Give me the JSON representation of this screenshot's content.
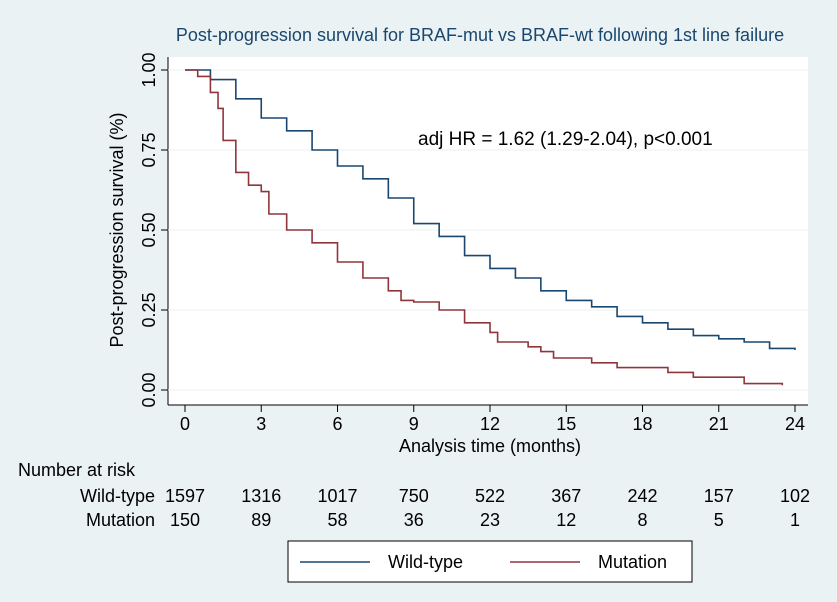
{
  "chart_data": {
    "type": "line",
    "step": true,
    "title": "Post-progression survival for BRAF-mut vs BRAF-wt following 1st line failure",
    "annotation": "adj HR = 1.62 (1.29-2.04), p<0.001",
    "x_label": "Analysis time (months)",
    "y_label": "Post-progression survival (%)",
    "xlim": [
      0,
      24
    ],
    "xticks": [
      0,
      3,
      6,
      9,
      12,
      15,
      18,
      21,
      24
    ],
    "ylim": [
      0,
      1
    ],
    "yticks": [
      {
        "value": 0,
        "label": "0.00"
      },
      {
        "value": 0.25,
        "label": "0.25"
      },
      {
        "value": 0.5,
        "label": "0.50"
      },
      {
        "value": 0.75,
        "label": "0.75"
      },
      {
        "value": 1,
        "label": "1.00"
      }
    ],
    "grid": true,
    "legend": "bottom",
    "series": [
      {
        "name": "Wild-type",
        "color": "#1a476f",
        "x": [
          0,
          1,
          2,
          3,
          4,
          5,
          6,
          7,
          8,
          9,
          10,
          11,
          12,
          13,
          14,
          15,
          16,
          17,
          18,
          19,
          20,
          21,
          22,
          23,
          24
        ],
        "values": [
          1.0,
          0.97,
          0.91,
          0.85,
          0.81,
          0.75,
          0.7,
          0.66,
          0.6,
          0.52,
          0.48,
          0.42,
          0.38,
          0.35,
          0.31,
          0.28,
          0.26,
          0.23,
          0.21,
          0.19,
          0.17,
          0.16,
          0.15,
          0.13,
          0.125
        ]
      },
      {
        "name": "Mutation",
        "color": "#90353b",
        "x": [
          0,
          0.5,
          1,
          1.3,
          1.5,
          2,
          2.5,
          3,
          3.3,
          4,
          5,
          6,
          7,
          8,
          8.5,
          9,
          10,
          11,
          12,
          12.3,
          13.5,
          14,
          14.5,
          15,
          16,
          17,
          18,
          19,
          20,
          21,
          22,
          23,
          23.5
        ],
        "values": [
          1.0,
          0.98,
          0.93,
          0.88,
          0.78,
          0.68,
          0.64,
          0.62,
          0.55,
          0.5,
          0.46,
          0.4,
          0.35,
          0.31,
          0.28,
          0.275,
          0.25,
          0.21,
          0.18,
          0.15,
          0.135,
          0.12,
          0.1,
          0.1,
          0.085,
          0.07,
          0.07,
          0.055,
          0.04,
          0.04,
          0.02,
          0.02,
          0.015
        ]
      }
    ],
    "risk_table": {
      "title": "Number at risk",
      "rows": [
        {
          "label": "Wild-type",
          "values": [
            1597,
            1316,
            1017,
            750,
            522,
            367,
            242,
            157,
            102
          ]
        },
        {
          "label": "Mutation",
          "values": [
            150,
            89,
            58,
            36,
            23,
            12,
            8,
            5,
            1
          ]
        }
      ]
    }
  }
}
